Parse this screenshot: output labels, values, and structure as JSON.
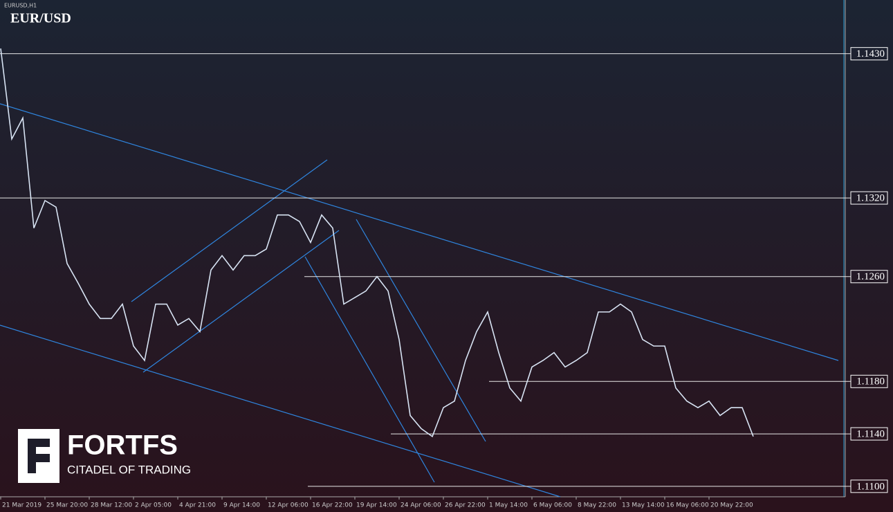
{
  "chart_data": {
    "type": "line",
    "subtitle": "EURUSD,H1",
    "title": "EUR/USD",
    "categories": [
      "21 Mar 2019",
      null,
      null,
      null,
      "25 Mar 20:00",
      null,
      null,
      null,
      "28 Mar 12:00",
      null,
      null,
      null,
      "2 Apr 05:00",
      null,
      null,
      null,
      "4 Apr 21:00",
      null,
      null,
      null,
      "9 Apr 14:00",
      null,
      null,
      null,
      "12 Apr 06:00",
      null,
      null,
      null,
      "16 Apr 22:00",
      null,
      null,
      null,
      "19 Apr 14:00",
      null,
      null,
      null,
      "24 Apr 06:00",
      null,
      null,
      null,
      "26 Apr 22:00",
      null,
      null,
      null,
      "1 May 14:00",
      null,
      null,
      null,
      "6 May 06:00",
      null,
      null,
      null,
      "8 May 22:00",
      null,
      null,
      null,
      "13 May 14:00",
      null,
      null,
      null,
      "16 May 06:00",
      null,
      null,
      null,
      "20 May 22:00",
      null,
      null,
      null,
      null
    ],
    "values": [
      1.1434,
      1.1365,
      1.1381,
      1.1297,
      1.1318,
      1.1313,
      1.127,
      1.1255,
      1.1239,
      1.1228,
      1.1228,
      1.1239,
      1.1207,
      1.1196,
      1.1239,
      1.1239,
      1.1223,
      1.1228,
      1.1218,
      1.1265,
      1.1276,
      1.1265,
      1.1276,
      1.1276,
      1.1281,
      1.1307,
      1.1307,
      1.1302,
      1.1286,
      1.1307,
      1.1297,
      1.1239,
      1.1244,
      1.1249,
      1.126,
      1.1249,
      1.1212,
      1.1154,
      1.1144,
      1.1138,
      1.116,
      1.1165,
      1.1196,
      1.1218,
      1.1233,
      1.1202,
      1.1175,
      1.1165,
      1.1191,
      1.1196,
      1.1202,
      1.1191,
      1.1196,
      1.1202,
      1.1233,
      1.1233,
      1.1239,
      1.1233,
      1.1212,
      1.1207,
      1.1207,
      1.1175,
      1.1165,
      1.116,
      1.1165,
      1.1154,
      1.116,
      1.116,
      1.1138
    ],
    "color": "#d8e4f4",
    "ylim": [
      1.1092,
      1.1471
    ],
    "yticks": [
      {
        "value": 1.143,
        "label": "1.1430"
      },
      {
        "value": 1.132,
        "label": "1.1320"
      },
      {
        "value": 1.126,
        "label": "1.1260"
      },
      {
        "value": 1.118,
        "label": "1.1180"
      },
      {
        "value": 1.114,
        "label": "1.1140"
      },
      {
        "value": 1.11,
        "label": "1.1100"
      }
    ],
    "grid": true
  },
  "brand": {
    "name": "FORTFS",
    "tagline": "CITADEL OF TRADING"
  }
}
